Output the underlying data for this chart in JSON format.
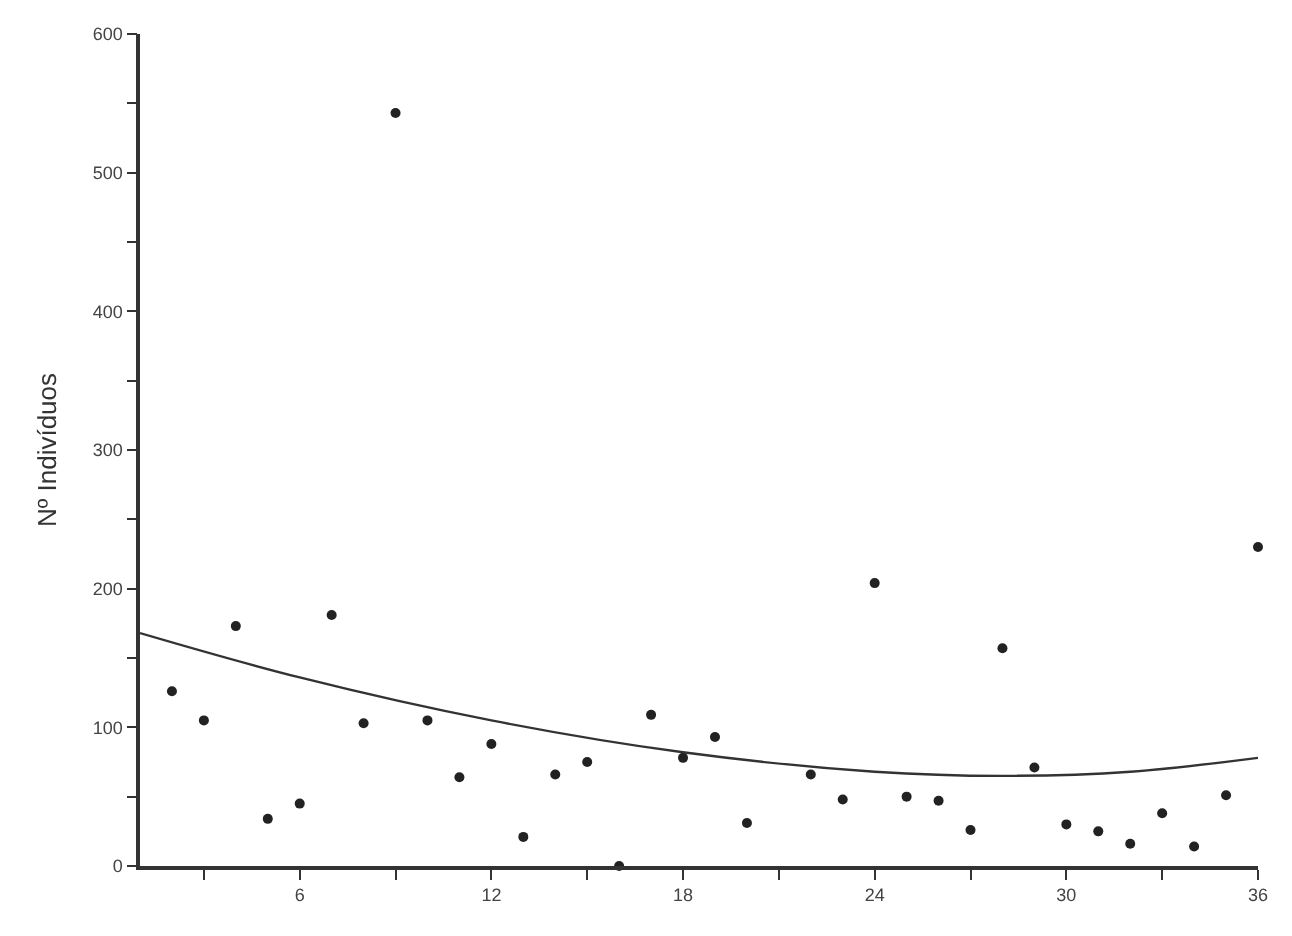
{
  "chart_data": {
    "type": "scatter",
    "ylabel": "Nº Indivíduos",
    "xlim": [
      1,
      36
    ],
    "ylim": [
      0,
      600
    ],
    "xticks": [
      {
        "value": 3,
        "label": null
      },
      6,
      {
        "value": 9,
        "label": null
      },
      12,
      {
        "value": 15,
        "label": null
      },
      18,
      {
        "value": 21,
        "label": null
      },
      24,
      {
        "value": 27,
        "label": null
      },
      30,
      {
        "value": 33,
        "label": null
      },
      36
    ],
    "yticks": [
      0,
      {
        "value": 50,
        "label": null
      },
      100,
      {
        "value": 150,
        "label": null
      },
      200,
      {
        "value": 250,
        "label": null
      },
      300,
      {
        "value": 350,
        "label": null
      },
      400,
      {
        "value": 450,
        "label": null
      },
      500,
      {
        "value": 550,
        "label": null
      },
      600
    ],
    "marker": "circle",
    "series": [
      {
        "color": "#222222",
        "x": [
          2,
          3,
          4,
          5,
          6,
          7,
          8,
          9,
          10,
          11,
          12,
          13,
          14,
          15,
          16,
          17,
          18,
          19,
          20,
          22,
          23,
          24,
          25,
          26,
          27,
          28,
          29,
          30,
          31,
          32,
          33,
          34,
          35,
          36
        ],
        "values": [
          126,
          105,
          173,
          34,
          45,
          181,
          103,
          543,
          105,
          64,
          88,
          21,
          66,
          75,
          0,
          109,
          78,
          93,
          31,
          66,
          48,
          204,
          50,
          47,
          26,
          157,
          71,
          30,
          25,
          16,
          38,
          14,
          51,
          230
        ]
      },
      {
        "type": "line",
        "color": "#333333",
        "marker": "none",
        "line_style": "solid",
        "x": [
          1,
          6,
          12,
          18,
          24,
          28,
          32,
          36
        ],
        "values": [
          168,
          136,
          105,
          82,
          68,
          65,
          68,
          78
        ]
      }
    ]
  }
}
